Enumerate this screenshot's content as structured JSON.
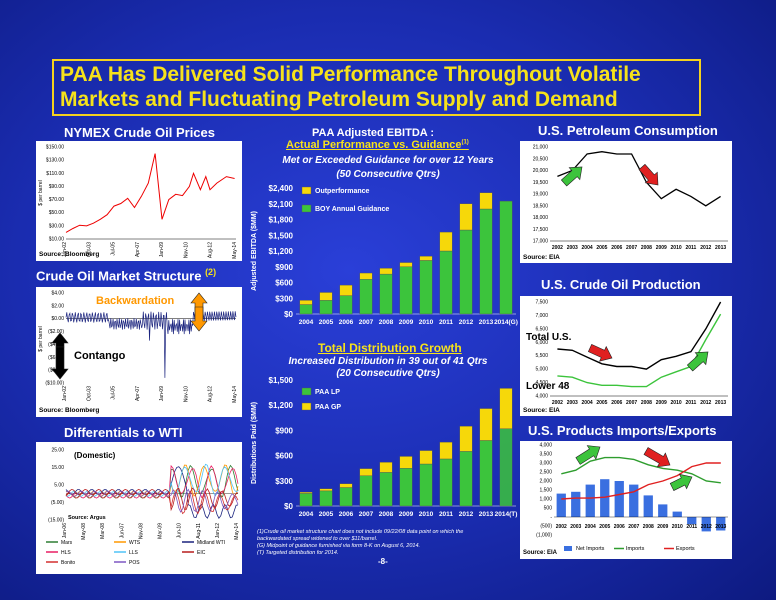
{
  "title": {
    "line1": "PAA Has Delivered Solid Performance Throughout Volatile",
    "line2": "Markets and Fluctuating Petroleum Supply and Demand"
  },
  "page_number": "-8-",
  "nymex": {
    "header": "NYMEX Crude Oil Prices",
    "source": "Source: Bloomberg",
    "ylabel": "$ per barrel",
    "yticks": [
      "$150.00",
      "$130.00",
      "$110.00",
      "$90.00",
      "$70.00",
      "$50.00",
      "$30.00",
      "$10.00"
    ],
    "xticks": [
      "Jan-02",
      "Oct-03",
      "Jul-05",
      "Apr-07",
      "Jan-09",
      "Nov-10",
      "Aug-12",
      "May-14"
    ],
    "series": [
      {
        "x": 2002.0,
        "y": 20
      },
      {
        "x": 2002.5,
        "y": 26
      },
      {
        "x": 2003.0,
        "y": 31
      },
      {
        "x": 2003.5,
        "y": 30
      },
      {
        "x": 2004.0,
        "y": 34
      },
      {
        "x": 2004.5,
        "y": 40
      },
      {
        "x": 2005.0,
        "y": 47
      },
      {
        "x": 2005.5,
        "y": 60
      },
      {
        "x": 2006.0,
        "y": 64
      },
      {
        "x": 2006.5,
        "y": 72
      },
      {
        "x": 2007.0,
        "y": 58
      },
      {
        "x": 2007.5,
        "y": 75
      },
      {
        "x": 2008.0,
        "y": 95
      },
      {
        "x": 2008.5,
        "y": 140
      },
      {
        "x": 2008.9,
        "y": 60
      },
      {
        "x": 2009.0,
        "y": 40
      },
      {
        "x": 2009.5,
        "y": 70
      },
      {
        "x": 2010.0,
        "y": 78
      },
      {
        "x": 2010.5,
        "y": 76
      },
      {
        "x": 2011.0,
        "y": 90
      },
      {
        "x": 2011.3,
        "y": 110
      },
      {
        "x": 2011.8,
        "y": 85
      },
      {
        "x": 2012.2,
        "y": 105
      },
      {
        "x": 2012.5,
        "y": 85
      },
      {
        "x": 2013.0,
        "y": 95
      },
      {
        "x": 2013.7,
        "y": 105
      },
      {
        "x": 2014.3,
        "y": 102
      }
    ]
  },
  "structure": {
    "header": "Crude Oil Market Structure",
    "header_sup": "(2)",
    "source": "Source: Bloomberg",
    "ylabel": "$ per barrel",
    "yticks": [
      "$4.00",
      "$2.00",
      "$0.00",
      "($2.00)",
      "($4.00)",
      "($6.00)",
      "($8.00)",
      "($10.00)"
    ],
    "xticks": [
      "Jan-02",
      "Oct-03",
      "Jul-05",
      "Apr-07",
      "Jan-09",
      "Nov-10",
      "Aug-12",
      "May-14"
    ],
    "backwardation": "Backwardation",
    "contango": "Contango"
  },
  "differentials": {
    "header": "Differentials to WTI",
    "label": "(Domestic)",
    "source": "Source: Argus",
    "yticks": [
      "25.00",
      "15.00",
      "5.00",
      "(5.00)",
      "(15.00)"
    ],
    "xticks": [
      "Jan-06",
      "May-08",
      "Mar-08",
      "Jun-07",
      "Nov-08",
      "Mar-09",
      "Jun-10",
      "Aug-11",
      "Jan-12",
      "May-14"
    ],
    "legend": [
      {
        "name": "Mars",
        "color": "#2e7d32"
      },
      {
        "name": "WTS",
        "color": "#ff9800"
      },
      {
        "name": "Midland WTI",
        "color": "#1a237e"
      },
      {
        "name": "HLS",
        "color": "#e91e63"
      },
      {
        "name": "LLS",
        "color": "#4fc3f7"
      },
      {
        "name": "EIC",
        "color": "#b71c1c"
      },
      {
        "name": "Bonito",
        "color": "#d32f2f"
      },
      {
        "name": "POS",
        "color": "#7e57c2"
      }
    ]
  },
  "ebitda": {
    "header": "PAA Adjusted EBITDA :",
    "subheader": "Actual Performance vs. Guidance",
    "sub_sup": "(1)",
    "note1": "Met or Exceeded Guidance for over 12 Years",
    "note2": "(50 Consecutive Qtrs)",
    "ylabel": "Adjusted EBITDA ($MM)",
    "yticks": [
      "$2,400",
      "$2,100",
      "$1,800",
      "$1,500",
      "$1,200",
      "$900",
      "$600",
      "$300",
      "$0"
    ],
    "legend": [
      "Outperformance",
      "BOY Annual Guidance"
    ]
  },
  "distribution": {
    "header": "Total Distribution Growth",
    "note1": "Increased Distribution in 39 out of 41 Qtrs",
    "note2": "(20 Consecutive Qtrs)",
    "ylabel": "Distributions Paid ($MM)",
    "yticks": [
      "$1,500",
      "$1,200",
      "$900",
      "$600",
      "$300",
      "$0"
    ],
    "legend": [
      "PAA LP",
      "PAA GP"
    ]
  },
  "footnotes": [
    "(1)Crude oil market structure chart does not include 09/22/08 data point on which the",
    "backwardated spread widened to over $11/barrel.",
    "(G) Midpoint of guidance furnished via form 8-K on August 6, 2014.",
    "(T) Targeted distribution for 2014."
  ],
  "consumption": {
    "header": "U.S. Petroleum Consumption",
    "source": "Source: EIA",
    "yticks": [
      "21,000",
      "20,500",
      "20,000",
      "19,500",
      "19,000",
      "18,500",
      "18,000",
      "17,500",
      "17,000"
    ],
    "xticks": [
      "2002",
      "2003",
      "2004",
      "2005",
      "2006",
      "2007",
      "2008",
      "2009",
      "2010",
      "2011",
      "2012",
      "2013"
    ]
  },
  "production": {
    "header": "U.S. Crude Oil Production",
    "source": "Source: EIA",
    "total_label": "Total U.S.",
    "lower_label": "Lower 48",
    "yticks": [
      "7,500",
      "7,000",
      "6,500",
      "6,000",
      "5,500",
      "5,000",
      "4,500",
      "4,000"
    ],
    "xticks": [
      "2002",
      "2003",
      "2004",
      "2005",
      "2006",
      "2007",
      "2008",
      "2009",
      "2010",
      "2011",
      "2012",
      "2013"
    ]
  },
  "imports": {
    "header": "U.S. Products Imports/Exports",
    "source": "Source: EIA",
    "yticks": [
      "4,000",
      "3,500",
      "3,000",
      "2,500",
      "2,000",
      "1,500",
      "1,000",
      "500",
      "-",
      "(500)",
      "(1,000)"
    ],
    "xticks": [
      "2002",
      "2003",
      "2004",
      "2005",
      "2006",
      "2007",
      "2008",
      "2009",
      "2010",
      "2011",
      "2012",
      "2013"
    ],
    "legend": [
      "Net Imports",
      "Imports",
      "Exports"
    ]
  },
  "chart_data": [
    {
      "type": "bar",
      "title": "PAA Adjusted EBITDA : Actual Performance vs. Guidance",
      "ylabel": "Adjusted EBITDA ($MM)",
      "ylim": [
        0,
        2400
      ],
      "categories": [
        "2004",
        "2005",
        "2006",
        "2007",
        "2008",
        "2009",
        "2010",
        "2011",
        "2012",
        "2013",
        "2014(G)"
      ],
      "series": [
        {
          "name": "BOY Annual Guidance",
          "values": [
            180,
            260,
            350,
            660,
            760,
            900,
            1020,
            1200,
            1600,
            2000,
            2150
          ]
        },
        {
          "name": "Outperformance",
          "values": [
            80,
            150,
            200,
            120,
            110,
            80,
            80,
            360,
            500,
            310,
            0
          ]
        }
      ]
    },
    {
      "type": "bar",
      "title": "Total Distribution Growth",
      "ylabel": "Distributions Paid ($MM)",
      "ylim": [
        0,
        1500
      ],
      "categories": [
        "2004",
        "2005",
        "2006",
        "2007",
        "2008",
        "2009",
        "2010",
        "2011",
        "2012",
        "2013",
        "2014(T)"
      ],
      "series": [
        {
          "name": "PAA LP",
          "values": [
            150,
            180,
            220,
            360,
            400,
            450,
            500,
            560,
            650,
            780,
            920
          ]
        },
        {
          "name": "PAA GP",
          "values": [
            15,
            25,
            45,
            85,
            120,
            140,
            160,
            200,
            300,
            380,
            480
          ]
        }
      ]
    },
    {
      "type": "line",
      "title": "U.S. Petroleum Consumption",
      "ylim": [
        17000,
        21000
      ],
      "categories": [
        "2002",
        "2003",
        "2004",
        "2005",
        "2006",
        "2007",
        "2008",
        "2009",
        "2010",
        "2011",
        "2012",
        "2013"
      ],
      "series": [
        {
          "values": [
            19750,
            20000,
            20700,
            20800,
            20700,
            20700,
            19500,
            18800,
            19200,
            18900,
            18500,
            18900
          ]
        }
      ]
    },
    {
      "type": "line",
      "title": "U.S. Crude Oil Production",
      "ylim": [
        4000,
        7500
      ],
      "categories": [
        "2002",
        "2003",
        "2004",
        "2005",
        "2006",
        "2007",
        "2008",
        "2009",
        "2010",
        "2011",
        "2012",
        "2013"
      ],
      "series": [
        {
          "name": "Total U.S.",
          "values": [
            5750,
            5700,
            5450,
            5200,
            5100,
            5100,
            5000,
            5350,
            5480,
            5650,
            6500,
            7500
          ]
        },
        {
          "name": "Lower 48",
          "values": [
            4750,
            4700,
            4500,
            4400,
            4400,
            4350,
            4350,
            4700,
            4900,
            5100,
            6100,
            7050
          ]
        }
      ]
    },
    {
      "type": "bar",
      "title": "U.S. Products Imports/Exports",
      "ylim": [
        -1000,
        4000
      ],
      "categories": [
        "2002",
        "2003",
        "2004",
        "2005",
        "2006",
        "2007",
        "2008",
        "2009",
        "2010",
        "2011",
        "2012",
        "2013"
      ],
      "series": [
        {
          "name": "Net Imports",
          "values": [
            1300,
            1400,
            1800,
            2100,
            2000,
            1800,
            1200,
            700,
            300,
            -400,
            -800,
            -750
          ]
        },
        {
          "name": "Imports",
          "values": [
            2400,
            2600,
            3100,
            3300,
            3300,
            3200,
            2900,
            2700,
            2600,
            2400,
            2000,
            1900
          ]
        },
        {
          "name": "Exports",
          "values": [
            1000,
            1050,
            1050,
            1100,
            1250,
            1400,
            1800,
            2000,
            2300,
            2800,
            3000,
            3000
          ]
        }
      ]
    }
  ]
}
